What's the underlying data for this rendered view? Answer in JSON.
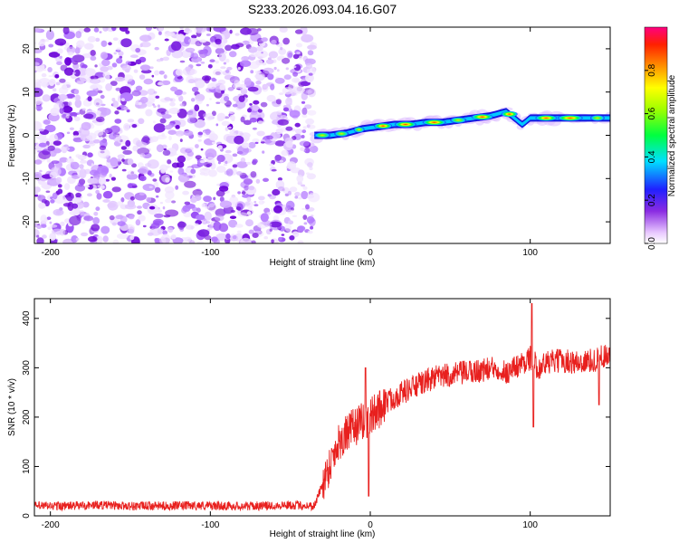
{
  "title": "S233.2026.093.04.16.G07",
  "chart_data": [
    {
      "type": "heatmap",
      "name": "spectrogram",
      "xlabel": "Height of straight line (km)",
      "ylabel": "Frequency (Hz)",
      "xlim": [
        -210,
        150
      ],
      "ylim": [
        -25,
        25
      ],
      "xticks": [
        -200,
        -100,
        0,
        100
      ],
      "yticks": [
        -20,
        -10,
        0,
        10,
        20
      ],
      "noise_region_end_km": -35,
      "ridge": {
        "x": [
          -35,
          -25,
          -15,
          -5,
          5,
          15,
          25,
          35,
          45,
          55,
          65,
          75,
          85,
          90,
          95,
          100,
          110,
          120,
          130,
          140,
          150
        ],
        "freq": [
          0,
          0,
          0.5,
          1.5,
          2,
          2.5,
          2.5,
          3,
          3,
          3.5,
          4,
          4.5,
          5.5,
          4,
          2.5,
          4,
          4,
          4,
          4,
          4,
          4
        ]
      },
      "colorbar": {
        "label": "Normalized spectral amplitude",
        "ticks": [
          0.0,
          0.2,
          0.4,
          0.6,
          0.8
        ],
        "range": [
          0,
          1
        ]
      }
    },
    {
      "type": "line",
      "name": "snr",
      "xlabel": "Height of straight line (km)",
      "ylabel": "SNR (10 * v/v)",
      "xlim": [
        -210,
        150
      ],
      "ylim": [
        0,
        440
      ],
      "xticks": [
        -200,
        -100,
        0,
        100
      ],
      "yticks": [
        0,
        100,
        200,
        300,
        400
      ],
      "color": "#e8201e",
      "series": [
        {
          "name": "SNR",
          "x": [
            -210,
            -190,
            -170,
            -150,
            -130,
            -110,
            -90,
            -70,
            -50,
            -35,
            -28,
            -20,
            -10,
            0,
            10,
            20,
            30,
            40,
            50,
            60,
            70,
            80,
            85,
            90,
            95,
            100,
            105,
            110,
            120,
            130,
            140,
            150
          ],
          "values": [
            20,
            20,
            22,
            20,
            20,
            21,
            20,
            20,
            22,
            20,
            80,
            150,
            180,
            200,
            230,
            250,
            265,
            280,
            285,
            290,
            295,
            300,
            290,
            300,
            310,
            320,
            300,
            310,
            315,
            310,
            315,
            330
          ]
        }
      ],
      "spikes": [
        {
          "x": 101,
          "value": 430
        },
        {
          "x": 102,
          "value": 180
        },
        {
          "x": -3,
          "value": 300
        },
        {
          "x": -1,
          "value": 40
        },
        {
          "x": 143,
          "value": 225
        }
      ]
    }
  ]
}
